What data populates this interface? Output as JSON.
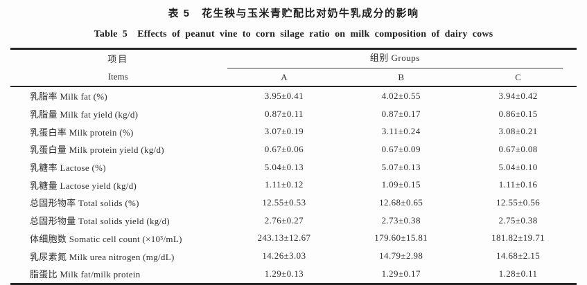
{
  "page": {
    "background": "#fdfdfd",
    "text_color": "#2e2e2e",
    "rule_color": "#262626"
  },
  "titles": {
    "zh": "表 5　花生秧与玉米青贮配比对奶牛乳成分的影响",
    "en": "Table 5　Effects of peanut vine to corn silage ratio on milk composition of dairy cows"
  },
  "table": {
    "header": {
      "items_zh": "项目",
      "items_en": "Items",
      "groups_label": "组别 Groups",
      "group_columns": {
        "a": "A",
        "b": "B",
        "c": "C"
      }
    },
    "rows": [
      {
        "item": "乳脂率 Milk fat (%)",
        "a": "3.95±0.41",
        "b": "4.02±0.55",
        "c": "3.94±0.42"
      },
      {
        "item": "乳脂量 Milk fat yield (kg/d)",
        "a": "0.87±0.11",
        "b": "0.87±0.17",
        "c": "0.86±0.15"
      },
      {
        "item": "乳蛋白率 Milk protein (%)",
        "a": "3.07±0.19",
        "b": "3.11±0.24",
        "c": "3.08±0.21"
      },
      {
        "item": "乳蛋白量 Milk protein yield (kg/d)",
        "a": "0.67±0.06",
        "b": "0.67±0.09",
        "c": "0.67±0.08"
      },
      {
        "item": "乳糖率 Lactose (%)",
        "a": "5.04±0.13",
        "b": "5.07±0.13",
        "c": "5.04±0.10"
      },
      {
        "item": "乳糖量 Lactose yield (kg/d)",
        "a": "1.11±0.12",
        "b": "1.09±0.15",
        "c": "1.11±0.16"
      },
      {
        "item": "总固形物率 Total solids (%)",
        "a": "12.55±0.53",
        "b": "12.68±0.65",
        "c": "12.55±0.56"
      },
      {
        "item": "总固形物量 Total solids yield (kg/d)",
        "a": "2.76±0.27",
        "b": "2.73±0.38",
        "c": "2.75±0.38"
      },
      {
        "item": "体细胞数 Somatic cell count (×10³/mL)",
        "a": "243.13±12.67",
        "b": "179.60±15.81",
        "c": "181.82±19.71"
      },
      {
        "item": "乳尿素氮 Milk urea nitrogen (mg/dL)",
        "a": "14.26±3.03",
        "b": "14.79±2.98",
        "c": "14.68±2.15"
      },
      {
        "item": "脂蛋比 Milk fat/milk protein",
        "a": "1.29±0.13",
        "b": "1.29±0.17",
        "c": "1.28±0.11"
      }
    ]
  }
}
